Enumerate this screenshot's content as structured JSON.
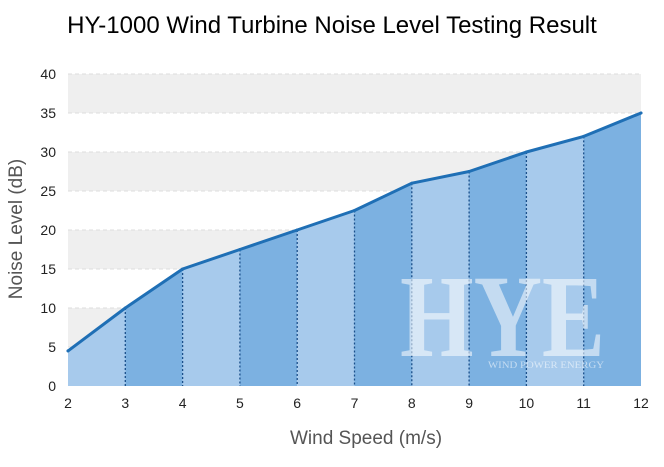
{
  "chart_data": {
    "type": "area",
    "title": "HY-1000 Wind Turbine Noise Level Testing Result",
    "xlabel": "Wind Speed (m/s)",
    "ylabel": "Noise Level (dB)",
    "x": [
      2,
      3,
      4,
      5,
      6,
      7,
      8,
      9,
      10,
      11,
      12
    ],
    "xlim": [
      2,
      12
    ],
    "ylim": [
      0,
      40
    ],
    "yticks": [
      0,
      5,
      10,
      15,
      20,
      25,
      30,
      35,
      40
    ],
    "series": [
      {
        "values": [
          4.5,
          10,
          15,
          17.5,
          20,
          22.5,
          26,
          27.5,
          30,
          32,
          35
        ]
      }
    ],
    "grid": true,
    "legend": "none",
    "colors": {
      "line": "#1f6fb5",
      "fill_light": "#a7caec",
      "fill_dark": "#7cb1e1",
      "band": "#efefef"
    }
  },
  "watermark": {
    "logo": "HYE",
    "tagline": "WIND POWER ENERGY"
  }
}
